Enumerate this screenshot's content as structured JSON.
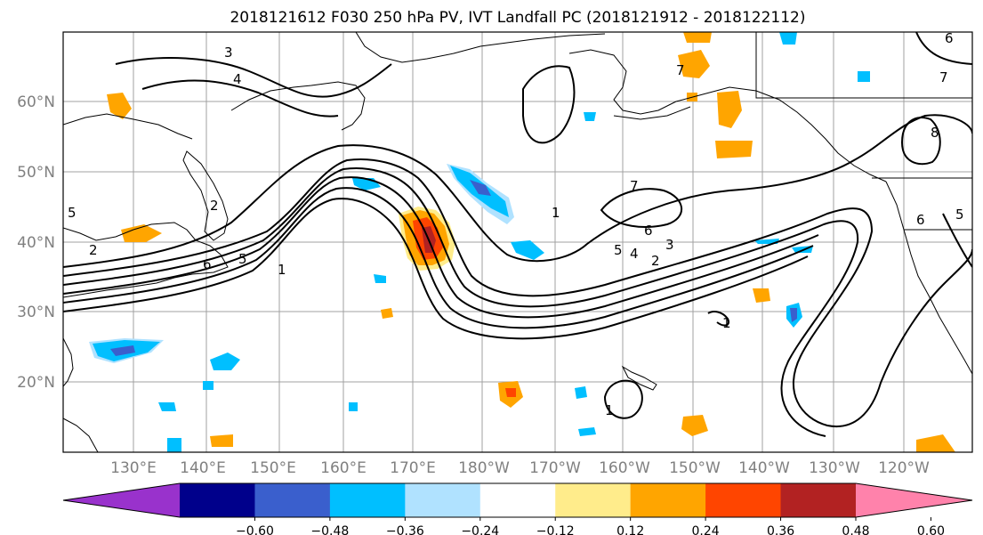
{
  "title": "2018121612 F030 250 hPa PV, IVT Landfall PC (2018121912 - 2018122112)",
  "lat_labels": [
    "60°N",
    "50°N",
    "40°N",
    "30°N",
    "20°N"
  ],
  "lon_labels": [
    "130°E",
    "140°E",
    "150°E",
    "160°E",
    "170°E",
    "180°W",
    "170°W",
    "160°W",
    "150°W",
    "140°W",
    "130°W",
    "120°W"
  ],
  "colorbar": {
    "colors": [
      "#9932cc",
      "#00008b",
      "#3a5fcd",
      "#00bfff",
      "#b0e2ff",
      "#ffffff",
      "#ffec8b",
      "#ffa500",
      "#ff4500",
      "#b22222",
      "#ff82ab"
    ],
    "tick_labels": [
      "−0.60",
      "−0.48",
      "−0.36",
      "−0.24",
      "−0.12",
      "0.12",
      "0.24",
      "0.36",
      "0.48",
      "0.60"
    ]
  },
  "contour_labels": [
    "3",
    "4",
    "5",
    "6",
    "5",
    "1",
    "2",
    "1",
    "7",
    "6",
    "5",
    "4",
    "3",
    "2",
    "1",
    "7",
    "8",
    "7",
    "6",
    "6",
    "5",
    "1",
    "2"
  ]
}
